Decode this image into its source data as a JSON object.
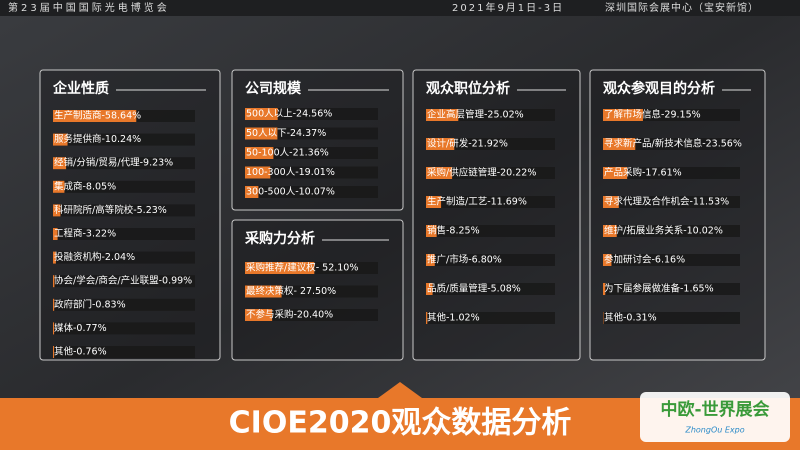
{
  "header": {
    "event": "第23届中国国际光电博览会",
    "date": "2021年9月1日-3日",
    "venue": "深圳国际会展中心（宝安新馆）"
  },
  "footer": {
    "title": "CIOE2020观众数据分析"
  },
  "logo": {
    "name": "中欧-世界展会",
    "sub": "ZhongOu Expo"
  },
  "chart_data": [
    {
      "type": "bar",
      "title": "企业性质",
      "color": "#e8782a",
      "xlim": [
        0,
        100
      ],
      "categories": [
        "生产制造商-58.64%",
        "服务提供商-10.24%",
        "经销/分销/贸易/代理-9.23%",
        "集成商-8.05%",
        "科研院所/高等院校-5.23%",
        "工程商-3.22%",
        "投融资机构-2.04%",
        "协会/学会/商会/产业联盟-0.99%",
        "政府部门-0.83%",
        "媒体-0.77%",
        "其他-0.76%"
      ],
      "values": [
        58.64,
        10.24,
        9.23,
        8.05,
        5.23,
        3.22,
        2.04,
        0.99,
        0.83,
        0.77,
        0.76
      ]
    },
    {
      "type": "bar",
      "title": "公司规模",
      "color": "#e8782a",
      "xlim": [
        0,
        100
      ],
      "categories": [
        "500人以上-24.56%",
        "50人以下-24.37%",
        "50-100人-21.36%",
        "100-300人-19.01%",
        "300-500人-10.07%"
      ],
      "values": [
        24.56,
        24.37,
        21.36,
        19.01,
        10.07
      ]
    },
    {
      "type": "bar",
      "title": "采购力分析",
      "color": "#e8782a",
      "xlim": [
        0,
        100
      ],
      "categories": [
        "采购推荐/建议权- 52.10%",
        "最终决策权- 27.50%",
        "不参与采购-20.40%"
      ],
      "values": [
        52.1,
        27.5,
        20.4
      ]
    },
    {
      "type": "bar",
      "title": "观众职位分析",
      "color": "#e8782a",
      "xlim": [
        0,
        100
      ],
      "categories": [
        "企业高层管理-25.02%",
        "设计/研发-21.92%",
        "采购/供应链管理-20.22%",
        "生产制造/工艺-11.69%",
        "销售-8.25%",
        "推广/市场-6.80%",
        "品质/质量管理-5.08%",
        "其他-1.02%"
      ],
      "values": [
        25.02,
        21.92,
        20.22,
        11.69,
        8.25,
        6.8,
        5.08,
        1.02
      ]
    },
    {
      "type": "bar",
      "title": "观众参观目的分析",
      "color": "#e8782a",
      "xlim": [
        0,
        100
      ],
      "categories": [
        "了解市场信息-29.15%",
        "寻求新产品/新技术信息-23.56%",
        "产品采购-17.61%",
        "寻求代理及合作机会-11.53%",
        "维护/拓展业务关系-10.02%",
        "参加研讨会-6.16%",
        "为下届参展做准备-1.65%",
        "其他-0.31%"
      ],
      "values": [
        29.15,
        23.56,
        17.61,
        11.53,
        10.02,
        6.16,
        1.65,
        0.31
      ]
    }
  ]
}
